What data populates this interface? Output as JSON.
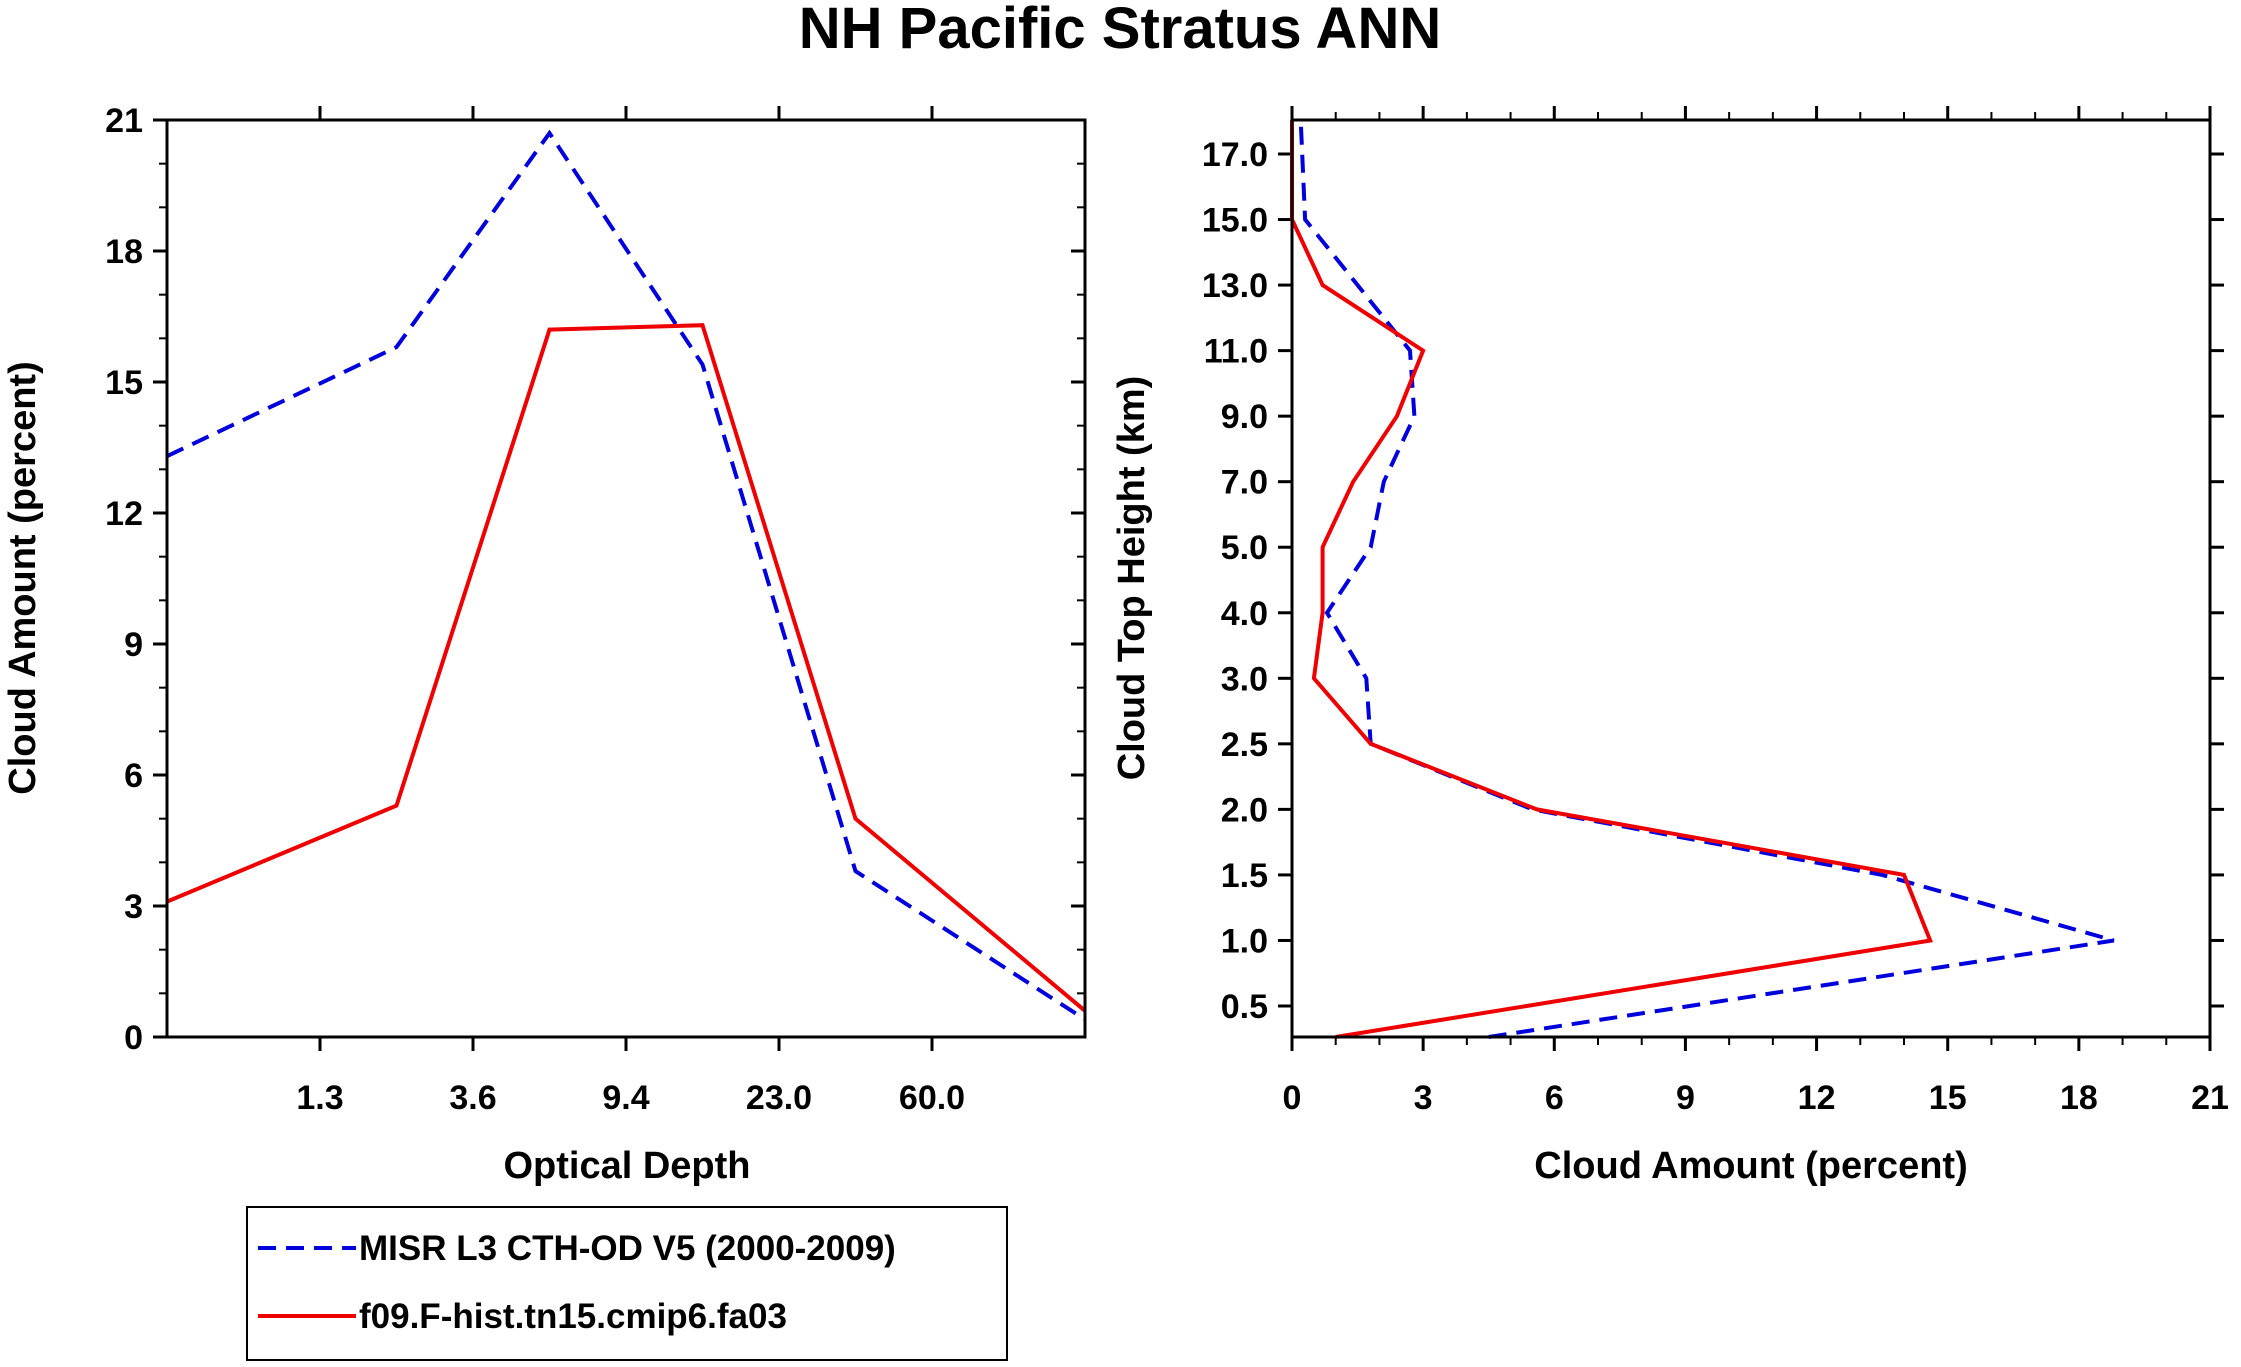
{
  "chart_data": [
    {
      "type": "line",
      "xlabel": "Optical Depth",
      "ylabel": "Cloud Amount (percent)",
      "ylim": [
        0,
        21
      ],
      "yticks": [
        "0",
        "3",
        "6",
        "9",
        "12",
        "15",
        "18",
        "21"
      ],
      "xtick_labels": [
        "1.3",
        "3.6",
        "9.4",
        "23.0",
        "60.0"
      ],
      "x_bins": [
        0,
        1,
        2,
        3,
        4,
        5,
        6
      ],
      "series": [
        {
          "name": "MISR L3 CTH-OD V5 (2000-2009)",
          "color": "#0000dd",
          "dash": "dashed",
          "values": [
            13.3,
            15.8,
            20.7,
            15.4,
            3.8,
            0.4
          ]
        },
        {
          "name": "f09.F-hist.tn15.cmip6.fa03",
          "color": "#ee0000",
          "dash": "solid",
          "values": [
            3.1,
            5.3,
            16.2,
            16.3,
            5.0,
            0.6
          ]
        }
      ]
    },
    {
      "type": "line",
      "xlabel": "Cloud Amount (percent)",
      "ylabel": "Cloud Top Height (km)",
      "xlim": [
        0,
        21
      ],
      "xticks": [
        "0",
        "3",
        "6",
        "9",
        "12",
        "15",
        "18",
        "21"
      ],
      "ytick_labels": [
        "0.5",
        "1.0",
        "1.5",
        "2.0",
        "2.5",
        "3.0",
        "4.0",
        "5.0",
        "7.0",
        "9.0",
        "11.0",
        "13.0",
        "15.0",
        "17.0"
      ],
      "series": [
        {
          "name": "MISR L3 CTH-OD V5 (2000-2009)",
          "color": "#0000dd",
          "dash": "dashed",
          "values": [
            4.5,
            18.8,
            13.5,
            5.5,
            1.8,
            1.7,
            0.8,
            1.8,
            2.1,
            2.8,
            2.7,
            1.5,
            0.3,
            0.2
          ]
        },
        {
          "name": "f09.F-hist.tn15.cmip6.fa03",
          "color": "#ee0000",
          "dash": "solid",
          "values": [
            1.0,
            14.6,
            14.0,
            5.6,
            1.8,
            0.5,
            0.7,
            0.7,
            1.4,
            2.4,
            3.0,
            0.7,
            0.0,
            0.0
          ]
        }
      ]
    }
  ],
  "figure": {
    "title": "NH Pacific Stratus ANN"
  },
  "legend": {
    "items": [
      {
        "label": "MISR L3 CTH-OD V5 (2000-2009)",
        "color": "#0000dd",
        "dash": "dashed"
      },
      {
        "label": "f09.F-hist.tn15.cmip6.fa03",
        "color": "#ee0000",
        "dash": "solid"
      }
    ]
  }
}
